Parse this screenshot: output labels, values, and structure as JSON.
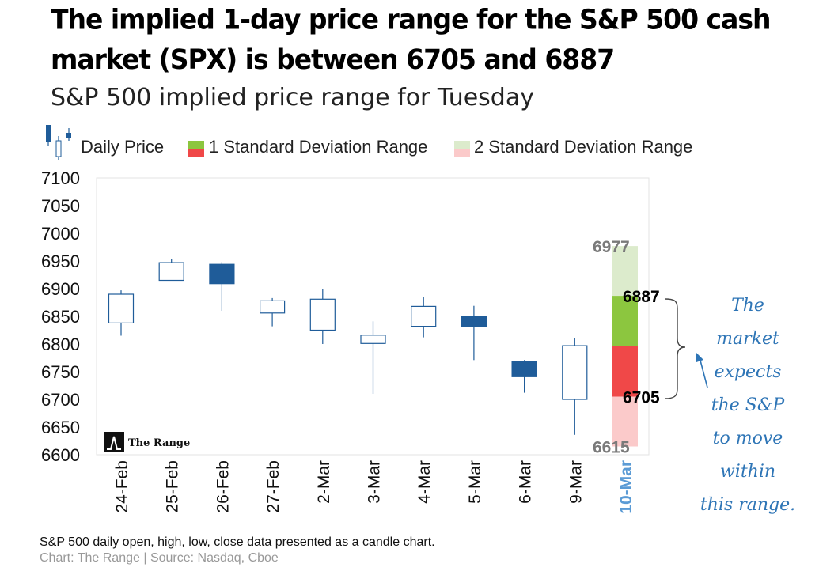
{
  "title": "The implied 1-day price range for the S&P 500 cash market (SPX) is between 6705 and 6887",
  "subtitle": "S&P 500 implied price range for Tuesday",
  "legend": {
    "daily_price": "Daily Price",
    "one_sd": "1 Standard Deviation  Range",
    "two_sd": "2 Standard Deviation  Range"
  },
  "logo_text": "The Range",
  "footnote": "S&P 500 daily open, high, low, close data presented as a candle chart.",
  "source": "Chart: The Range | Source: Nasdaq, Cboe",
  "annotation": [
    "The",
    "market",
    "expects",
    "the S&P",
    "to move",
    "within",
    "this range."
  ],
  "colors": {
    "up_candle_fill": "#ffffff",
    "down_candle_fill": "#1f5c99",
    "candle_stroke": "#1f5c99",
    "sd1_upper": "#8cc63f",
    "sd1_lower": "#f04848",
    "sd2_upper": "#dcebcc",
    "sd2_lower": "#fbcaca",
    "forecast_label": "#5b9bd5",
    "annotation": "#2e75b6"
  },
  "chart_data": {
    "type": "candlestick",
    "title": "S&P 500 implied price range for Tuesday",
    "ylim": [
      6600,
      7100
    ],
    "yticks": [
      7100,
      7050,
      7000,
      6950,
      6900,
      6850,
      6800,
      6750,
      6700,
      6650,
      6600
    ],
    "categories": [
      "24-Feb",
      "25-Feb",
      "26-Feb",
      "27-Feb",
      "2-Mar",
      "3-Mar",
      "4-Mar",
      "5-Mar",
      "6-Mar",
      "9-Mar"
    ],
    "candles": [
      {
        "date": "24-Feb",
        "open": 6838,
        "high": 6897,
        "low": 6815,
        "close": 6890
      },
      {
        "date": "25-Feb",
        "open": 6915,
        "high": 6953,
        "low": 6915,
        "close": 6947
      },
      {
        "date": "26-Feb",
        "open": 6944,
        "high": 6948,
        "low": 6860,
        "close": 6909
      },
      {
        "date": "27-Feb",
        "open": 6856,
        "high": 6883,
        "low": 6832,
        "close": 6878
      },
      {
        "date": "2-Mar",
        "open": 6825,
        "high": 6900,
        "low": 6800,
        "close": 6881
      },
      {
        "date": "3-Mar",
        "open": 6801,
        "high": 6841,
        "low": 6710,
        "close": 6816
      },
      {
        "date": "4-Mar",
        "open": 6832,
        "high": 6885,
        "low": 6812,
        "close": 6868
      },
      {
        "date": "5-Mar",
        "open": 6850,
        "high": 6869,
        "low": 6771,
        "close": 6832
      },
      {
        "date": "6-Mar",
        "open": 6768,
        "high": 6771,
        "low": 6712,
        "close": 6741
      },
      {
        "date": "9-Mar",
        "open": 6700,
        "high": 6810,
        "low": 6636,
        "close": 6797
      }
    ],
    "forecast": {
      "date": "10-Mar",
      "sd2_high": 6977,
      "sd1_high": 6887,
      "mid": 6796,
      "sd1_low": 6705,
      "sd2_low": 6615
    }
  }
}
